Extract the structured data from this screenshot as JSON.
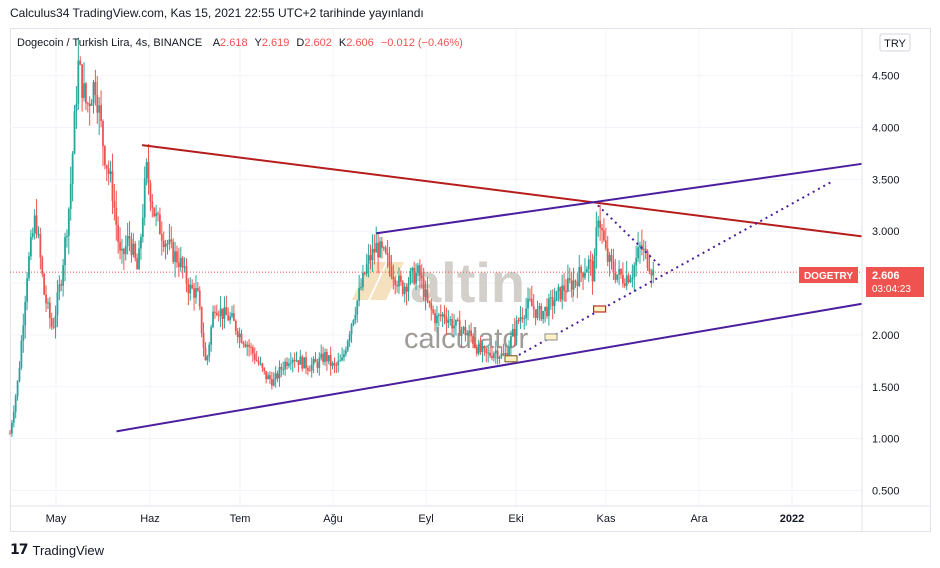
{
  "header": {
    "publish_line": "Calculus34 TradingView.com, Kas 15, 2021 22:55 UTC+2 tarihinde yayınlandı"
  },
  "legend": {
    "symbol_line": "Dogecoin / Turkish Lira, 4s, BINANCE",
    "a_label": "A",
    "a_value": "2.618",
    "y_label": "Y",
    "y_value": "2.619",
    "d_label": "D",
    "d_value": "2.602",
    "k_label": "K",
    "k_value": "2.606",
    "change": "−0.012 (−0.46%)"
  },
  "currency_button": "TRY",
  "price_tag": {
    "symbol": "DOGETRY",
    "price": "2.606",
    "countdown": "03:04:23"
  },
  "watermark": {
    "brand": "altin",
    "suffix": ".in",
    "sub": "calculator"
  },
  "footer": {
    "logo": "17",
    "label": "TradingView"
  },
  "colors": {
    "candle_up": "#26a69a",
    "candle_down": "#ef5350",
    "resistance_line": "#b71c1c",
    "channel_line": "#4a1e9e",
    "price_tag": "#ef5350",
    "grid": "#f0f3fa"
  },
  "chart_data": {
    "type": "candlestick",
    "symbol": "DOGETRY",
    "interval": "4s",
    "exchange": "BINANCE",
    "last_price": 2.606,
    "y_axis": {
      "ticks": [
        "4.500",
        "4.000",
        "3.500",
        "3.000",
        "2.500",
        "2.000",
        "1.500",
        "1.000",
        "0.500"
      ],
      "range": [
        0.35,
        4.95
      ]
    },
    "x_axis": {
      "ticks": [
        "May",
        "Haz",
        "Tem",
        "Ağu",
        "Eyl",
        "Eki",
        "Kas",
        "Ara",
        "2022"
      ],
      "bold_ticks": [
        "2022"
      ]
    },
    "price_path": [
      [
        0.0,
        1.05
      ],
      [
        0.01,
        1.6
      ],
      [
        0.02,
        2.6
      ],
      [
        0.03,
        3.15
      ],
      [
        0.04,
        2.4
      ],
      [
        0.05,
        2.05
      ],
      [
        0.06,
        2.55
      ],
      [
        0.07,
        3.3
      ],
      [
        0.08,
        4.6
      ],
      [
        0.09,
        4.2
      ],
      [
        0.1,
        4.45
      ],
      [
        0.11,
        3.8
      ],
      [
        0.12,
        3.4
      ],
      [
        0.13,
        2.7
      ],
      [
        0.14,
        2.95
      ],
      [
        0.15,
        2.6
      ],
      [
        0.16,
        3.6
      ],
      [
        0.17,
        3.15
      ],
      [
        0.18,
        2.95
      ],
      [
        0.19,
        2.8
      ],
      [
        0.2,
        2.7
      ],
      [
        0.21,
        2.45
      ],
      [
        0.22,
        2.4
      ],
      [
        0.23,
        1.7
      ],
      [
        0.24,
        2.3
      ],
      [
        0.25,
        2.2
      ],
      [
        0.26,
        2.15
      ],
      [
        0.27,
        2.0
      ],
      [
        0.28,
        1.9
      ],
      [
        0.29,
        1.75
      ],
      [
        0.3,
        1.6
      ],
      [
        0.31,
        1.55
      ],
      [
        0.32,
        1.7
      ],
      [
        0.33,
        1.8
      ],
      [
        0.34,
        1.75
      ],
      [
        0.35,
        1.7
      ],
      [
        0.36,
        1.72
      ],
      [
        0.37,
        1.8
      ],
      [
        0.38,
        1.68
      ],
      [
        0.39,
        1.75
      ],
      [
        0.4,
        2.1
      ],
      [
        0.41,
        2.4
      ],
      [
        0.42,
        2.7
      ],
      [
        0.43,
        2.85
      ],
      [
        0.44,
        2.75
      ],
      [
        0.45,
        2.6
      ],
      [
        0.46,
        2.45
      ],
      [
        0.47,
        2.55
      ],
      [
        0.48,
        2.6
      ],
      [
        0.49,
        2.3
      ],
      [
        0.5,
        2.15
      ],
      [
        0.51,
        2.2
      ],
      [
        0.52,
        2.1
      ],
      [
        0.53,
        2.05
      ],
      [
        0.54,
        2.0
      ],
      [
        0.55,
        1.85
      ],
      [
        0.56,
        1.8
      ],
      [
        0.57,
        1.85
      ],
      [
        0.58,
        1.78
      ],
      [
        0.59,
        2.0
      ],
      [
        0.6,
        2.2
      ],
      [
        0.61,
        2.3
      ],
      [
        0.62,
        2.2
      ],
      [
        0.63,
        2.25
      ],
      [
        0.64,
        2.35
      ],
      [
        0.65,
        2.45
      ],
      [
        0.66,
        2.5
      ],
      [
        0.67,
        2.6
      ],
      [
        0.68,
        2.7
      ],
      [
        0.685,
        2.55
      ],
      [
        0.69,
        3.2
      ],
      [
        0.7,
        2.75
      ],
      [
        0.71,
        2.6
      ],
      [
        0.72,
        2.55
      ],
      [
        0.73,
        2.6
      ],
      [
        0.74,
        2.85
      ],
      [
        0.75,
        2.7
      ],
      [
        0.755,
        2.6
      ]
    ],
    "annotations": {
      "resistance_line": {
        "from": [
          0.155,
          3.83
        ],
        "to": [
          1.0,
          2.95
        ]
      },
      "upper_channel": {
        "from": [
          0.43,
          2.98
        ],
        "to": [
          1.0,
          3.65
        ]
      },
      "lower_channel": {
        "from": [
          0.125,
          1.07
        ],
        "to": [
          1.0,
          2.3
        ]
      },
      "dotted_projection": {
        "from": [
          0.585,
          1.75
        ],
        "to": [
          0.965,
          3.48
        ]
      },
      "dotted_pullback": {
        "from": [
          0.69,
          3.25
        ],
        "to": [
          0.765,
          2.65
        ]
      }
    }
  }
}
